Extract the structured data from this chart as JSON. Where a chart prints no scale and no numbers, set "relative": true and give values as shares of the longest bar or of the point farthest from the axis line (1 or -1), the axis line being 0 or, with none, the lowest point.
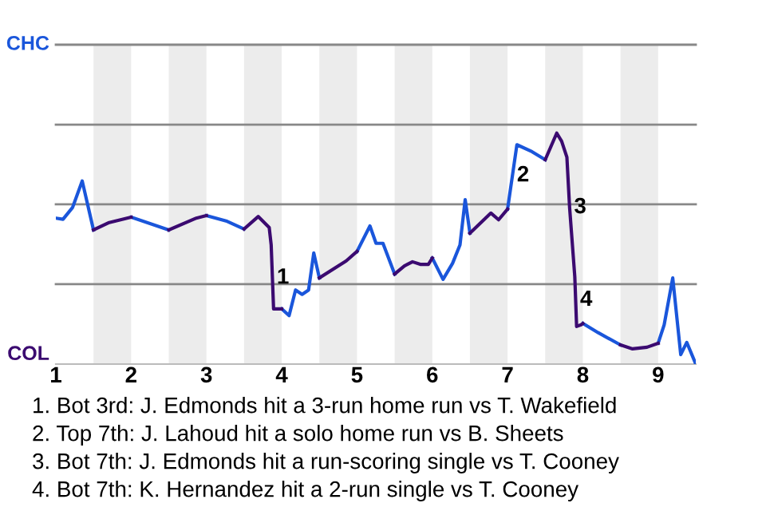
{
  "chart_data": {
    "type": "line",
    "relative": true,
    "series": [
      {
        "color": "#1a56db",
        "x": [
          1.0,
          1.095,
          1.222,
          1.35,
          1.5,
          null,
          2.0,
          2.5,
          null,
          3.0,
          3.261,
          3.5,
          null,
          4.0,
          4.098,
          4.184,
          4.271,
          4.357,
          4.426,
          4.5,
          null,
          5.0,
          5.172,
          5.253,
          5.345,
          5.5,
          null,
          6.0,
          6.143,
          6.269,
          6.368,
          6.437,
          6.5,
          null,
          7.0,
          7.124,
          7.324,
          7.5,
          null,
          8.0,
          8.204,
          8.5,
          null,
          9.0,
          9.08,
          9.194,
          9.3,
          9.38,
          9.5
        ],
        "values": [
          0.632,
          0.627,
          0.678,
          0.793,
          0.581,
          null,
          0.636,
          0.581,
          null,
          0.643,
          0.62,
          0.585,
          null,
          0.239,
          0.21,
          0.321,
          0.302,
          0.321,
          0.481,
          0.373,
          null,
          0.488,
          0.598,
          0.523,
          0.523,
          0.39,
          null,
          0.459,
          0.367,
          0.436,
          0.516,
          0.712,
          0.567,
          null,
          0.671,
          0.95,
          0.92,
          0.885,
          null,
          0.176,
          0.136,
          0.083,
          null,
          0.09,
          0.17,
          0.373,
          0.041,
          0.094,
          0
        ]
      },
      {
        "color": "#3b0a70",
        "x": [
          1.5,
          1.709,
          2.0,
          null,
          2.5,
          2.866,
          3.0,
          null,
          3.5,
          3.689,
          3.834,
          3.86,
          3.892,
          4.0,
          null,
          4.5,
          4.857,
          5.0,
          null,
          5.5,
          5.629,
          5.737,
          5.84,
          5.948,
          6.0,
          null,
          6.5,
          6.779,
          6.881,
          7.0,
          null,
          7.5,
          7.653,
          7.718,
          7.788,
          7.824,
          7.893,
          7.917,
          7.976,
          8.0,
          null,
          8.5,
          8.66,
          8.852,
          9.0
        ],
        "values": [
          0.581,
          0.613,
          0.636,
          null,
          0.581,
          0.632,
          0.643,
          null,
          0.585,
          0.639,
          0.591,
          0.516,
          0.239,
          0.239,
          null,
          0.373,
          0.447,
          0.488,
          null,
          0.39,
          0.425,
          0.443,
          0.432,
          0.432,
          0.459,
          null,
          0.567,
          0.654,
          0.625,
          0.671,
          null,
          0.885,
          1,
          0.965,
          0.896,
          0.678,
          0.378,
          0.163,
          0.17,
          0.176,
          null,
          0.083,
          0.066,
          0.073,
          0.09
        ]
      }
    ],
    "xlim": [
      1,
      9.5
    ],
    "xticks": [
      1,
      2,
      3,
      4,
      5,
      6,
      7,
      8,
      9
    ],
    "ref_lines": [
      {
        "axis": "y",
        "value": 0.346,
        "color": "#888888"
      },
      {
        "axis": "y",
        "value": 0.692,
        "color": "#888888"
      },
      {
        "axis": "y",
        "value": 1.037,
        "color": "#888888"
      },
      {
        "axis": "y",
        "value": 1.383,
        "color": "#888888"
      }
    ],
    "bands": [
      {
        "axis": "x",
        "from": 1.5,
        "to": 2,
        "color": "#ececec"
      },
      {
        "axis": "x",
        "from": 2.5,
        "to": 3,
        "color": "#ececec"
      },
      {
        "axis": "x",
        "from": 3.5,
        "to": 4,
        "color": "#ececec"
      },
      {
        "axis": "x",
        "from": 4.5,
        "to": 5,
        "color": "#ececec"
      },
      {
        "axis": "x",
        "from": 5.5,
        "to": 6,
        "color": "#ececec"
      },
      {
        "axis": "x",
        "from": 6.5,
        "to": 7,
        "color": "#ececec"
      },
      {
        "axis": "x",
        "from": 7.5,
        "to": 8,
        "color": "#ececec"
      },
      {
        "axis": "x",
        "from": 8.5,
        "to": 9,
        "color": "#ececec"
      }
    ],
    "annotations": [
      "CHC",
      "COL",
      {
        "text": "1",
        "x": 3.876,
        "y": 0.373
      },
      {
        "text": "2",
        "x": 7.065,
        "y": 0.816
      },
      {
        "text": "3",
        "x": 7.824,
        "y": 0.678
      },
      {
        "text": "4",
        "x": 7.904,
        "y": 0.277
      },
      "1. Bot 3rd: J. Edmonds hit a 3-run home run vs T. Wakefield",
      "2. Top 7th: J. Lahoud hit a solo home run vs B. Sheets",
      "3. Bot 7th: J. Edmonds hit a run-scoring single vs T. Cooney",
      "4. Bot 7th: K. Hernandez hit a 2-run single vs T. Cooney"
    ],
    "marker": "none",
    "line_style": "solid"
  }
}
